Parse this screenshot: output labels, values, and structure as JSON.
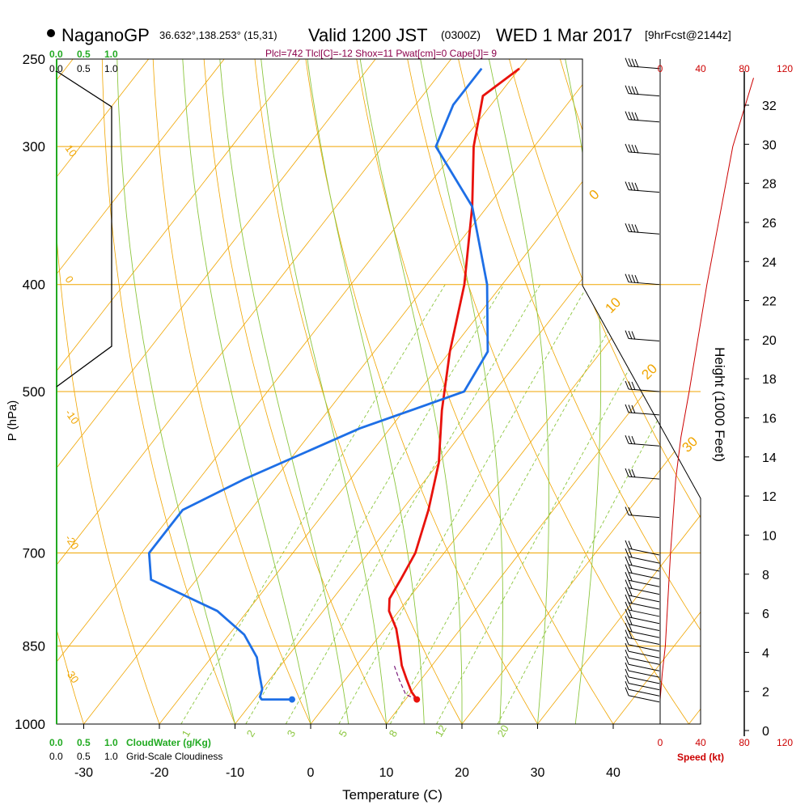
{
  "header": {
    "station": "NaganoGP",
    "coords": "36.632°,138.253° (15,31)",
    "valid": "Valid 1200 JST",
    "utc": "(0300Z)",
    "date": "WED 1 Mar 2017",
    "fcst": "[9hrFcst@2144z]",
    "indices": "Plcl=742 Tlcl[C]=-12 Shox=11 Pwat[cm]=0 Cape[J]= 9"
  },
  "labels": {
    "cloud_top_green": [
      "0.0",
      "0.5",
      "1.0"
    ],
    "cloud_top_black": [
      "0.0",
      "0.5",
      "1.0"
    ],
    "cloud_bottom_green": [
      "0.0",
      "0.5",
      "1.0"
    ],
    "cloud_bottom_green_title": "CloudWater (g/Kg)",
    "cloud_bottom_black": [
      "0.0",
      "0.5",
      "1.0"
    ],
    "cloud_bottom_black_title": "Grid-Scale Cloudiness",
    "speed_title": "Speed (kt)",
    "height_title": "Height (1000 Feet)"
  },
  "colors": {
    "temperature": "#e8120c",
    "dewpoint": "#1e6fe6",
    "isobar": "#f0a500",
    "dry_adiabat": "#f0a500",
    "moist_adiabat": "#8cc63f",
    "mixing_ratio": "#8cc63f",
    "parcel": "#7a1a7a",
    "speed": "#cc0000",
    "header_indices": "#8b004b",
    "cloud_green": "#22aa22"
  },
  "chart_data": {
    "type": "line",
    "title": "NaganoGP Valid 1200 JST (0300Z) WED 1 Mar 2017",
    "xlabel": "Temperature (C)",
    "ylabel": "P (hPa)",
    "ylabel_right": "Height (1000 Feet)",
    "x_ticks": [
      -30,
      -20,
      -10,
      0,
      10,
      20,
      30,
      40
    ],
    "y_ticks": [
      250,
      300,
      400,
      500,
      700,
      850,
      1000
    ],
    "ylim": [
      1000,
      250
    ],
    "y_scale": "log",
    "height_ticks": [
      0,
      2,
      4,
      6,
      8,
      10,
      12,
      14,
      16,
      18,
      20,
      22,
      24,
      26,
      28,
      30,
      32
    ],
    "speed_ticks": [
      0,
      40,
      80,
      120
    ],
    "dry_adiabat_labels": [
      "10",
      "0",
      "-10",
      "-20",
      "-30"
    ],
    "moist_adiabat_labels": [
      "0",
      "10",
      "20",
      "30"
    ],
    "mixing_ratio_labels": [
      "1",
      "2",
      "3",
      "5",
      "8",
      "12",
      "20"
    ],
    "series": [
      {
        "name": "Temperature",
        "points": [
          [
            11.5,
            950
          ],
          [
            10,
            935
          ],
          [
            8,
            910
          ],
          [
            6,
            885
          ],
          [
            4,
            855
          ],
          [
            1.5,
            820
          ],
          [
            -1.3,
            790
          ],
          [
            -2.5,
            770
          ],
          [
            -3,
            740
          ],
          [
            -3.8,
            700
          ],
          [
            -6.5,
            640
          ],
          [
            -10,
            580
          ],
          [
            -15,
            520
          ],
          [
            -20,
            460
          ],
          [
            -25,
            400
          ],
          [
            -32,
            340
          ],
          [
            -38,
            300
          ],
          [
            -42,
            270
          ],
          [
            -40,
            255
          ]
        ]
      },
      {
        "name": "Dewpoint",
        "points": [
          [
            -5,
            950
          ],
          [
            -9,
            950
          ],
          [
            -9.5,
            945
          ],
          [
            -10,
            930
          ],
          [
            -12,
            900
          ],
          [
            -14,
            870
          ],
          [
            -18,
            830
          ],
          [
            -24,
            790
          ],
          [
            -36,
            740
          ],
          [
            -39,
            700
          ],
          [
            -39,
            660
          ],
          [
            -39,
            640
          ],
          [
            -34,
            600
          ],
          [
            -24,
            540
          ],
          [
            -14,
            500
          ],
          [
            -15,
            460
          ],
          [
            -22,
            400
          ],
          [
            -32,
            340
          ],
          [
            -43,
            300
          ],
          [
            -45,
            275
          ],
          [
            -45,
            255
          ]
        ]
      },
      {
        "name": "Parcel",
        "points": [
          [
            11.5,
            950
          ],
          [
            9.5,
            940
          ],
          [
            7,
            910
          ],
          [
            5,
            885
          ]
        ]
      }
    ],
    "wind_speed_kt": [
      [
        0,
        950
      ],
      [
        2,
        900
      ],
      [
        5,
        850
      ],
      [
        10,
        700
      ],
      [
        15,
        600
      ],
      [
        20,
        550
      ],
      [
        28,
        500
      ],
      [
        45,
        400
      ],
      [
        70,
        300
      ],
      [
        90,
        260
      ]
    ]
  }
}
